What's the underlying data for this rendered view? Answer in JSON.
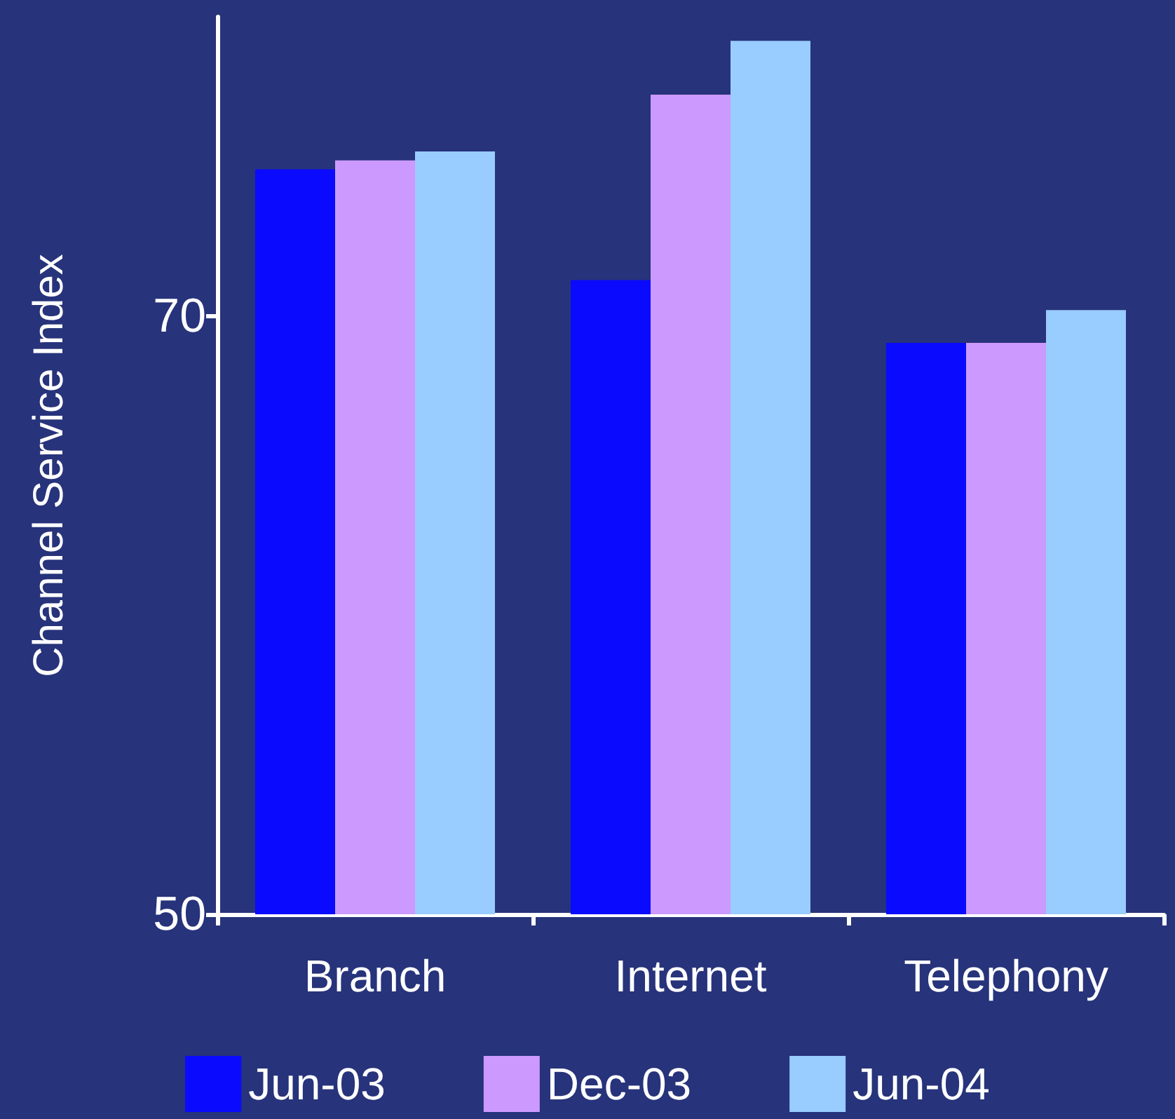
{
  "chart_data": {
    "type": "bar",
    "ylabel": "Channel Service Index",
    "categories": [
      "Branch",
      "Internet",
      "Telephony"
    ],
    "series": [
      {
        "name": "Jun-03",
        "color": "#0a0aff",
        "values": [
          74.9,
          71.2,
          69.1
        ]
      },
      {
        "name": "Dec-03",
        "color": "#cc99ff",
        "values": [
          75.2,
          77.4,
          69.1
        ]
      },
      {
        "name": "Jun-04",
        "color": "#99ccff",
        "values": [
          75.5,
          79.2,
          70.2
        ]
      }
    ],
    "ylim": [
      50,
      80
    ],
    "yticks": [
      50,
      70
    ],
    "grid": false,
    "legend": "bottom"
  }
}
